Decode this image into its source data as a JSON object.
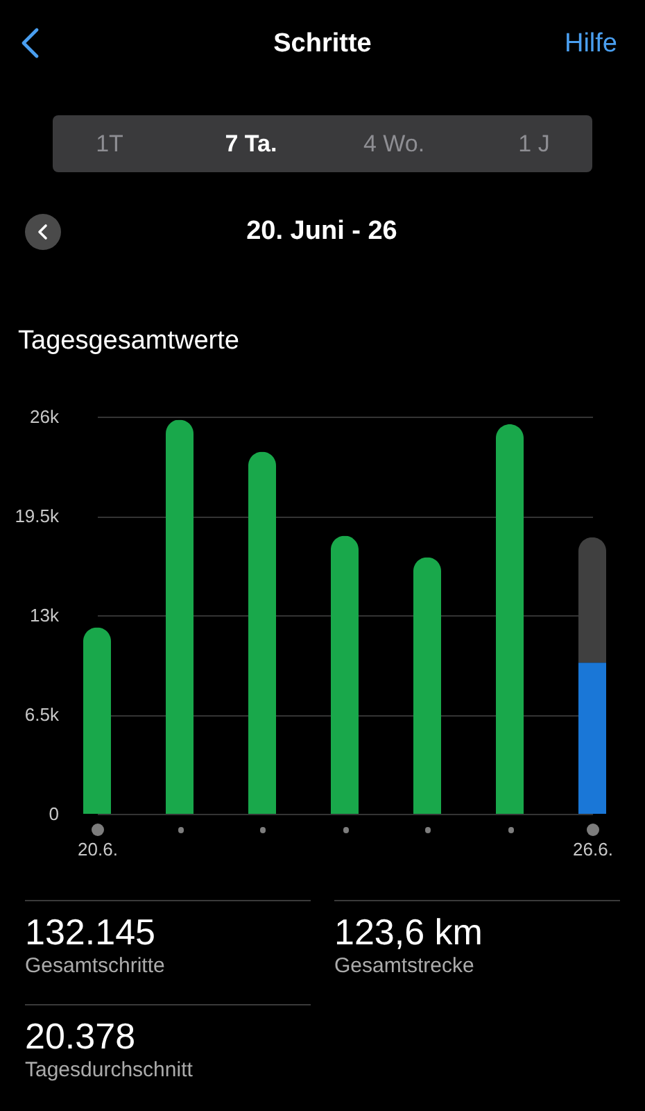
{
  "chart_data": {
    "type": "bar",
    "title": "Schritte",
    "subtitle": "20. Juni - 26",
    "annotations": [
      "Hilfe",
      "1T",
      "7 Ta.",
      "4 Wo.",
      "1 J",
      "Tagesgesamtwerte",
      "132.145",
      "Gesamtschritte",
      "123,6 km",
      "Gesamtstrecke",
      "20.378",
      "Tagesdurchschnitt"
    ],
    "categories": [
      "20.6.",
      null,
      null,
      null,
      null,
      null,
      "26.6."
    ],
    "series": [
      {
        "colors": [
          "#19a84b",
          "#19a84b",
          "#19a84b",
          "#19a84b",
          "#19a84b",
          "#19a84b",
          "#1a77d7"
        ],
        "values": [
          12200,
          25800,
          23700,
          18200,
          16800,
          25500,
          9900
        ]
      },
      {
        "color": "#404040",
        "values": [
          null,
          null,
          null,
          null,
          null,
          null,
          8200
        ]
      }
    ],
    "stacked": true,
    "ylim": [
      0,
      26000
    ],
    "yticks": [
      0,
      {
        "value": 6500,
        "label": "6.5k"
      },
      {
        "value": 13000,
        "label": "13k"
      },
      {
        "value": 19500,
        "label": "19.5k"
      },
      {
        "value": 26000,
        "label": "26k"
      }
    ],
    "grid": "y"
  }
}
